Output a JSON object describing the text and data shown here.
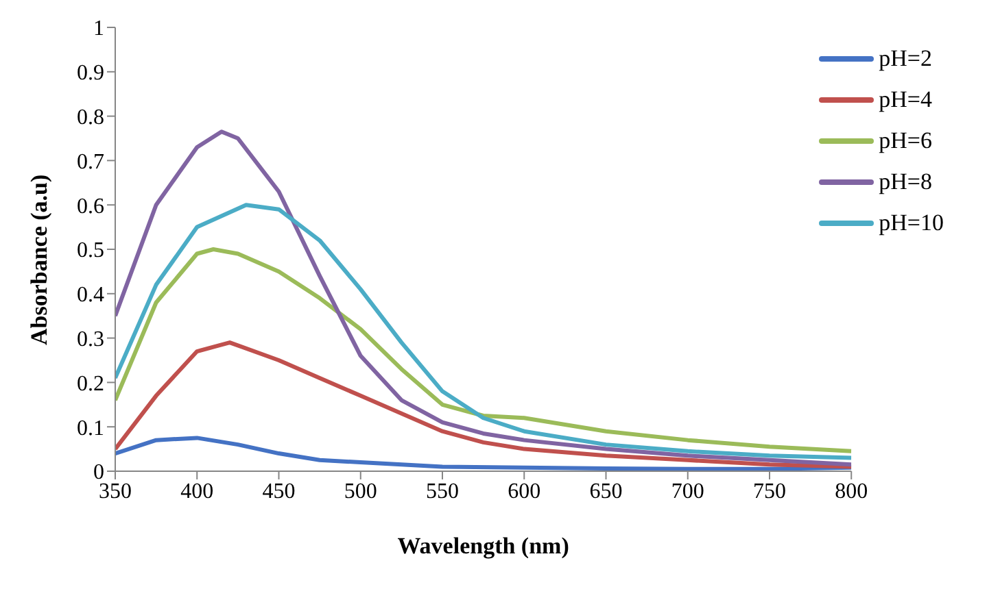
{
  "chart_data": {
    "type": "line",
    "xlabel": "Wavelength (nm)",
    "ylabel": "Absorbance (a.u)",
    "xlim": [
      350,
      800
    ],
    "xticks": [
      350,
      400,
      450,
      500,
      550,
      600,
      650,
      700,
      750,
      800
    ],
    "ylim": [
      0,
      1
    ],
    "yticks": [
      0,
      0.1,
      0.2,
      0.3,
      0.4,
      0.5,
      0.6,
      0.7,
      0.8,
      0.9,
      1
    ],
    "grid": false,
    "legend": "top right",
    "marker": "none",
    "line_style": "solid",
    "series": [
      {
        "name": "pH=2",
        "color": "#4472c4",
        "x": [
          350,
          375,
          400,
          425,
          450,
          475,
          500,
          525,
          550,
          600,
          650,
          700,
          750,
          800
        ],
        "values": [
          0.04,
          0.07,
          0.075,
          0.06,
          0.04,
          0.025,
          0.02,
          0.015,
          0.01,
          0.008,
          0.006,
          0.005,
          0.005,
          0.008
        ]
      },
      {
        "name": "pH=4",
        "color": "#c0504d",
        "x": [
          350,
          375,
          400,
          420,
          450,
          475,
          500,
          525,
          550,
          575,
          600,
          650,
          700,
          750,
          800
        ],
        "values": [
          0.05,
          0.17,
          0.27,
          0.29,
          0.25,
          0.21,
          0.17,
          0.13,
          0.09,
          0.065,
          0.05,
          0.035,
          0.025,
          0.015,
          0.01
        ]
      },
      {
        "name": "pH=6",
        "color": "#9bbb59",
        "x": [
          350,
          375,
          400,
          410,
          425,
          450,
          475,
          500,
          525,
          550,
          575,
          600,
          650,
          700,
          750,
          800
        ],
        "values": [
          0.16,
          0.38,
          0.49,
          0.5,
          0.49,
          0.45,
          0.39,
          0.32,
          0.23,
          0.15,
          0.125,
          0.12,
          0.09,
          0.07,
          0.055,
          0.045
        ]
      },
      {
        "name": "pH=8",
        "color": "#8064a2",
        "x": [
          350,
          375,
          400,
          415,
          425,
          450,
          475,
          500,
          525,
          550,
          575,
          600,
          650,
          700,
          750,
          800
        ],
        "values": [
          0.35,
          0.6,
          0.73,
          0.765,
          0.75,
          0.63,
          0.44,
          0.26,
          0.16,
          0.11,
          0.085,
          0.07,
          0.05,
          0.035,
          0.025,
          0.015
        ]
      },
      {
        "name": "pH=10",
        "color": "#4bacc6",
        "x": [
          350,
          375,
          400,
          430,
          450,
          475,
          500,
          525,
          550,
          575,
          600,
          650,
          700,
          750,
          800
        ],
        "values": [
          0.21,
          0.42,
          0.55,
          0.6,
          0.59,
          0.52,
          0.41,
          0.29,
          0.18,
          0.12,
          0.09,
          0.06,
          0.045,
          0.035,
          0.03
        ]
      }
    ]
  }
}
